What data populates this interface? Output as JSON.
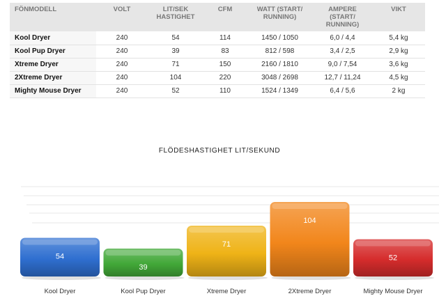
{
  "table": {
    "headers": [
      "FÖNMODELL",
      "VOLT",
      "LIT/SEK HASTIGHET",
      "CFM",
      "WATT (START/ RUNNING)",
      "AMPERE (START/ RUNNING)",
      "VIKT"
    ],
    "rows": [
      [
        "Kool Dryer",
        "240",
        "54",
        "114",
        "1450 / 1050",
        "6,0 / 4,4",
        "5,4 kg"
      ],
      [
        "Kool Pup Dryer",
        "240",
        "39",
        "83",
        "812 / 598",
        "3,4 / 2,5",
        "2,9 kg"
      ],
      [
        "Xtreme Dryer",
        "240",
        "71",
        "150",
        "2160 / 1810",
        "9,0 / 7,54",
        "3,6 kg"
      ],
      [
        "2Xtreme Dryer",
        "240",
        "104",
        "220",
        "3048 / 2698",
        "12,7 / 11,24",
        "4,5 kg"
      ],
      [
        "Mighty Mouse Dryer",
        "240",
        "52",
        "110",
        "1524 / 1349",
        "6,4 / 5,6",
        "2 kg"
      ]
    ]
  },
  "chart_data": {
    "type": "bar",
    "title": "FLÖDESHASTIGHET LIT/SEKUND",
    "categories": [
      "Kool Dryer",
      "Kool Pup Dryer",
      "Xtreme Dryer",
      "2Xtreme Dryer",
      "Mighty Mouse Dryer"
    ],
    "values": [
      54,
      39,
      71,
      104,
      52
    ],
    "colors": [
      "#2f6fd0",
      "#42a838",
      "#efb317",
      "#f2861b",
      "#d52c2c"
    ],
    "grid": true,
    "style": "3d-rounded-bars"
  }
}
